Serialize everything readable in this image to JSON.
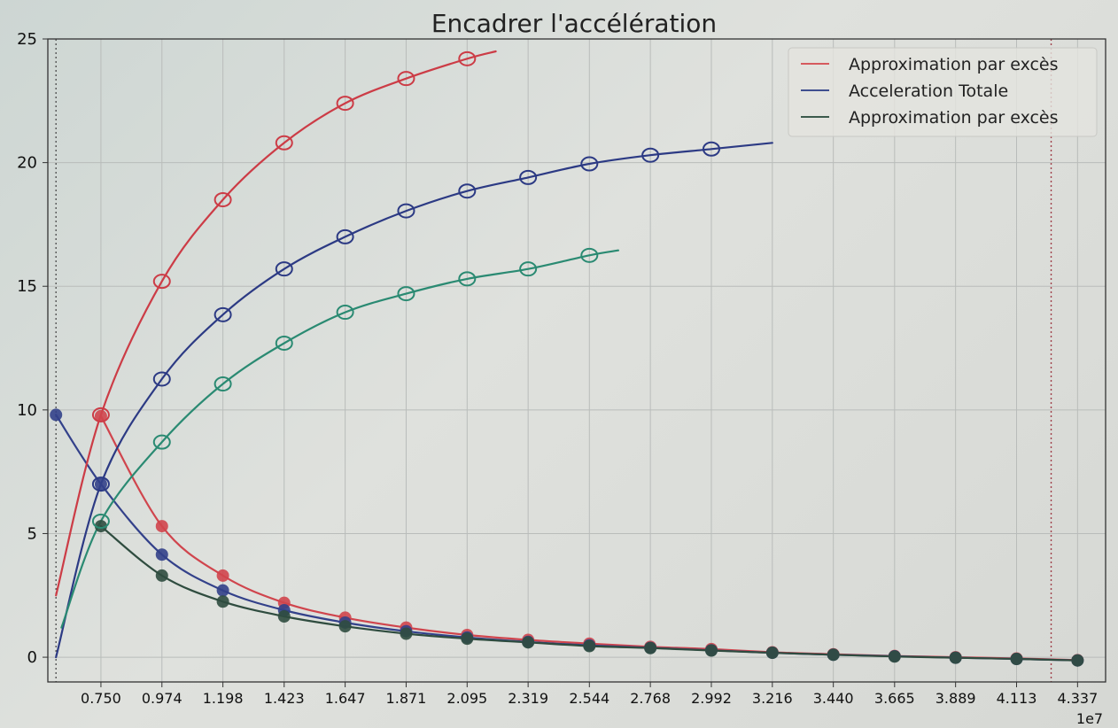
{
  "chart_data": {
    "type": "line",
    "title": "Encadrer l'accélération",
    "x_exponent_label": "1e7",
    "xlim": [
      0.555,
      4.44
    ],
    "ylim": [
      -1,
      25
    ],
    "x_ticks": [
      0.75,
      0.974,
      1.198,
      1.423,
      1.647,
      1.871,
      2.095,
      2.319,
      2.544,
      2.768,
      2.992,
      3.216,
      3.44,
      3.665,
      3.889,
      4.113,
      4.337
    ],
    "x_tick_labels": [
      "0.750",
      "0.974",
      "1.198",
      "1.423",
      "1.647",
      "1.871",
      "2.095",
      "2.319",
      "2.544",
      "2.768",
      "2.992",
      "3.216",
      "3.440",
      "3.665",
      "3.889",
      "4.113",
      "4.337"
    ],
    "y_ticks": [
      0,
      5,
      10,
      15,
      20,
      25
    ],
    "y_tick_labels": [
      "0",
      "5",
      "10",
      "15",
      "20",
      "25"
    ],
    "grid": true,
    "vlines": [
      0.585,
      4.24
    ],
    "legend_position": "top-right",
    "legend": [
      {
        "label": "Approximation par excès",
        "color": "#d65a5e"
      },
      {
        "label": "Acceleration Totale",
        "color": "#3f4f8f"
      },
      {
        "label": "Approximation par excès",
        "color": "#3c5a4c"
      }
    ],
    "series": [
      {
        "color": "#d0454d",
        "x": [
          0.75,
          0.974,
          1.198,
          1.423,
          1.647,
          1.871,
          2.095,
          2.319,
          2.544,
          2.768,
          2.992,
          3.216,
          3.44,
          3.665,
          3.889,
          4.113,
          4.337
        ],
        "y": [
          9.75,
          5.3,
          3.3,
          2.2,
          1.6,
          1.2,
          0.9,
          0.7,
          0.55,
          0.42,
          0.33,
          0.2,
          0.12,
          0.05,
          0.0,
          -0.05,
          -0.12
        ],
        "markers": "filled"
      },
      {
        "color": "#33418a",
        "x": [
          0.585,
          0.75,
          0.974,
          1.198,
          1.423,
          1.647,
          1.871,
          2.095,
          2.319,
          2.544,
          2.768,
          2.992,
          3.216,
          3.44,
          3.665,
          3.889,
          4.113,
          4.337
        ],
        "y": [
          9.8,
          7.0,
          4.15,
          2.7,
          1.9,
          1.4,
          1.05,
          0.8,
          0.62,
          0.48,
          0.38,
          0.28,
          0.18,
          0.1,
          0.04,
          -0.02,
          -0.07,
          -0.13
        ],
        "markers": "filled"
      },
      {
        "color": "#2f4c3f",
        "x": [
          0.75,
          0.974,
          1.198,
          1.423,
          1.647,
          1.871,
          2.095,
          2.319,
          2.544,
          2.768,
          2.992,
          3.216,
          3.44,
          3.665,
          3.889,
          4.113,
          4.337
        ],
        "y": [
          5.3,
          3.3,
          2.25,
          1.65,
          1.25,
          0.95,
          0.75,
          0.6,
          0.45,
          0.37,
          0.27,
          0.18,
          0.1,
          0.03,
          -0.02,
          -0.07,
          -0.13
        ],
        "markers": "filled"
      },
      {
        "color": "#cc3c46",
        "x": [
          0.585,
          0.75,
          0.974,
          1.198,
          1.423,
          1.647,
          1.871,
          2.095,
          2.2
        ],
        "y": [
          2.5,
          9.8,
          15.2,
          18.5,
          20.8,
          22.4,
          23.4,
          24.2,
          24.5
        ],
        "markers": "hollow"
      },
      {
        "color": "#2c3a84",
        "x": [
          0.585,
          0.75,
          0.974,
          1.198,
          1.423,
          1.647,
          1.871,
          2.095,
          2.319,
          2.544,
          2.768,
          2.992,
          3.216
        ],
        "y": [
          0.0,
          7.0,
          11.25,
          13.85,
          15.7,
          17.0,
          18.05,
          18.85,
          19.4,
          19.95,
          20.3,
          20.55,
          20.8
        ],
        "markers": "hollow"
      },
      {
        "color": "#2a8a72",
        "x": [
          0.605,
          0.75,
          0.974,
          1.198,
          1.423,
          1.647,
          1.871,
          2.095,
          2.319,
          2.544,
          2.65
        ],
        "y": [
          1.2,
          5.5,
          8.7,
          11.05,
          12.7,
          13.95,
          14.7,
          15.3,
          15.7,
          16.25,
          16.45
        ],
        "markers": "hollow"
      }
    ]
  }
}
